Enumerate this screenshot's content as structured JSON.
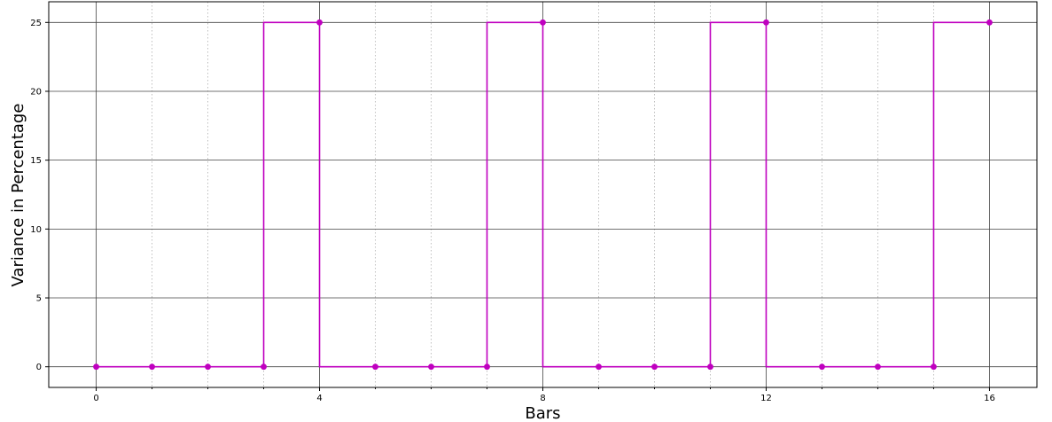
{
  "chart_data": {
    "type": "line",
    "drawstyle": "steps-pre",
    "title": "",
    "xlabel": "Bars",
    "ylabel": "Variance in Percentage",
    "xlim": [
      -0.85,
      16.85
    ],
    "ylim": [
      -1.5,
      26.5
    ],
    "x_ticks_major": [
      0,
      4,
      8,
      12,
      16
    ],
    "x_tick_labels": [
      "0",
      "4",
      "8",
      "12",
      "16"
    ],
    "x_ticks_minor": [
      1,
      2,
      3,
      5,
      6,
      7,
      9,
      10,
      11,
      13,
      14,
      15
    ],
    "y_ticks": [
      0,
      5,
      10,
      15,
      20,
      25
    ],
    "y_tick_labels": [
      "0",
      "5",
      "10",
      "15",
      "20",
      "25"
    ],
    "grid": true,
    "series": [
      {
        "color": "#bf00bf",
        "marker": "circle",
        "x": [
          0,
          1,
          2,
          3,
          4,
          5,
          6,
          7,
          8,
          9,
          10,
          11,
          12,
          13,
          14,
          15,
          16
        ],
        "y": [
          0,
          0,
          0,
          0,
          25,
          0,
          0,
          0,
          25,
          0,
          0,
          0,
          25,
          0,
          0,
          0,
          25
        ]
      }
    ]
  }
}
